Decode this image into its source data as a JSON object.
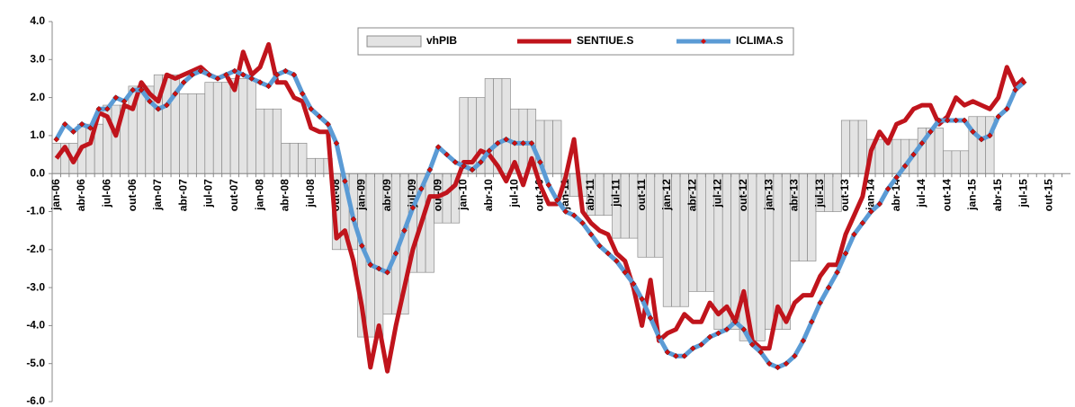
{
  "chart_data": {
    "type": "bar-line",
    "categories": [
      "jan-06",
      null,
      null,
      "abr-06",
      null,
      null,
      "jul-06",
      null,
      null,
      "out-06",
      null,
      null,
      "jan-07",
      null,
      null,
      "abr-07",
      null,
      null,
      "jul-07",
      null,
      null,
      "out-07",
      null,
      null,
      "jan-08",
      null,
      null,
      "abr-08",
      null,
      null,
      "jul-08",
      null,
      null,
      "out-08",
      null,
      null,
      "jan-09",
      null,
      null,
      "abr-09",
      null,
      null,
      "jul-09",
      null,
      null,
      "out-09",
      null,
      null,
      "jan-10",
      null,
      null,
      "abr-10",
      null,
      null,
      "jul-10",
      null,
      null,
      "out-10",
      null,
      null,
      "jan-11",
      null,
      null,
      "abr-11",
      null,
      null,
      "jul-11",
      null,
      null,
      "out-11",
      null,
      null,
      "jan-12",
      null,
      null,
      "abr-12",
      null,
      null,
      "jul-12",
      null,
      null,
      "out-12",
      null,
      null,
      "jan-13",
      null,
      null,
      "abr-13",
      null,
      null,
      "jul-13",
      null,
      null,
      "out-13",
      null,
      null,
      "jan-14",
      null,
      null,
      "abr-14",
      null,
      null,
      "jul-14",
      null,
      null,
      "out-14",
      null,
      null,
      "jan-15",
      null,
      null,
      "abr-15",
      null,
      null,
      "jul-15",
      null,
      null,
      "out-15",
      null,
      null
    ],
    "series": [
      {
        "name": "vhPIB",
        "kind": "bar",
        "color": "#e3e3e3",
        "values": [
          0.8,
          0.8,
          0.8,
          1.3,
          1.3,
          1.3,
          1.8,
          1.8,
          1.8,
          2.3,
          2.3,
          2.3,
          2.6,
          2.6,
          2.6,
          2.1,
          2.1,
          2.1,
          2.4,
          2.4,
          2.4,
          2.5,
          2.5,
          2.5,
          1.7,
          1.7,
          1.7,
          0.8,
          0.8,
          0.8,
          0.4,
          0.4,
          0.4,
          -2.0,
          -2.0,
          -2.0,
          -4.3,
          -4.3,
          -4.3,
          -3.7,
          -3.7,
          -3.7,
          -2.6,
          -2.6,
          -2.6,
          -1.3,
          -1.3,
          -1.3,
          2.0,
          2.0,
          2.0,
          2.5,
          2.5,
          2.5,
          1.7,
          1.7,
          1.7,
          1.4,
          1.4,
          1.4,
          -0.6,
          -0.6,
          -0.6,
          -1.1,
          -1.1,
          -1.1,
          -1.7,
          -1.7,
          -1.7,
          -2.2,
          -2.2,
          -2.2,
          -3.5,
          -3.5,
          -3.5,
          -3.1,
          -3.1,
          -3.1,
          -4.1,
          -4.1,
          -4.1,
          -4.4,
          -4.4,
          -4.4,
          -4.1,
          -4.1,
          -4.1,
          -2.3,
          -2.3,
          -2.3,
          -1.0,
          -1.0,
          -1.0,
          1.4,
          1.4,
          1.4,
          0.9,
          0.9,
          0.9,
          0.9,
          0.9,
          0.9,
          1.2,
          1.2,
          1.2,
          0.6,
          0.6,
          0.6,
          1.5,
          1.5,
          1.5,
          null,
          null,
          null,
          null,
          null,
          null,
          null,
          null,
          null
        ]
      },
      {
        "name": "SENTIUE.S",
        "kind": "line",
        "color": "#c0141c",
        "values": [
          0.4,
          0.7,
          0.3,
          0.7,
          0.8,
          1.6,
          1.5,
          1.0,
          1.8,
          1.7,
          2.4,
          2.1,
          1.9,
          2.6,
          2.5,
          2.6,
          2.7,
          2.8,
          2.6,
          2.5,
          2.6,
          2.2,
          3.2,
          2.6,
          2.8,
          3.4,
          2.4,
          2.4,
          2.0,
          1.9,
          1.2,
          1.1,
          1.1,
          -1.7,
          -1.5,
          -2.3,
          -3.5,
          -5.1,
          -4.0,
          -5.2,
          -4.0,
          -3.0,
          -2.0,
          -1.3,
          -0.6,
          -0.6,
          -0.5,
          -0.3,
          0.3,
          0.3,
          0.6,
          0.5,
          0.2,
          -0.2,
          0.3,
          -0.3,
          0.4,
          -0.3,
          -0.8,
          -0.8,
          -0.1,
          0.9,
          -1.0,
          -1.3,
          -1.5,
          -1.6,
          -2.1,
          -2.3,
          -3.0,
          -4.0,
          -2.8,
          -4.4,
          -4.2,
          -4.1,
          -3.7,
          -3.9,
          -3.9,
          -3.4,
          -3.7,
          -3.5,
          -3.9,
          -3.1,
          -4.4,
          -4.6,
          -4.6,
          -3.5,
          -3.9,
          -3.4,
          -3.2,
          -3.2,
          -2.7,
          -2.4,
          -2.4,
          -1.6,
          -1.1,
          -0.6,
          0.6,
          1.1,
          0.8,
          1.3,
          1.4,
          1.7,
          1.8,
          1.8,
          1.3,
          1.5,
          2.0,
          1.8,
          1.9,
          1.8,
          1.7,
          2.0,
          2.8,
          2.3,
          2.5,
          null,
          null,
          null,
          null,
          null
        ]
      },
      {
        "name": "ICLIMA.S",
        "kind": "line-marker",
        "color": "#5b9bd5",
        "marker_color": "#d01010",
        "values": [
          0.9,
          1.3,
          1.1,
          1.3,
          1.2,
          1.7,
          1.7,
          2.0,
          1.9,
          2.2,
          2.2,
          1.9,
          1.7,
          1.8,
          2.1,
          2.4,
          2.6,
          2.7,
          2.6,
          2.5,
          2.6,
          2.7,
          2.6,
          2.5,
          2.4,
          2.3,
          2.6,
          2.7,
          2.6,
          2.1,
          1.7,
          1.5,
          1.3,
          0.8,
          -0.2,
          -1.2,
          -1.9,
          -2.4,
          -2.5,
          -2.6,
          -2.1,
          -1.5,
          -0.9,
          -0.4,
          0.1,
          0.7,
          0.5,
          0.3,
          0.2,
          0.1,
          0.3,
          0.6,
          0.8,
          0.9,
          0.8,
          0.8,
          0.8,
          0.3,
          -0.3,
          -0.7,
          -1.0,
          -1.1,
          -1.3,
          -1.6,
          -1.9,
          -2.1,
          -2.3,
          -2.6,
          -2.9,
          -3.3,
          -3.8,
          -4.3,
          -4.7,
          -4.8,
          -4.8,
          -4.6,
          -4.5,
          -4.3,
          -4.2,
          -4.1,
          -3.9,
          -4.1,
          -4.5,
          -4.7,
          -5.0,
          -5.1,
          -5.0,
          -4.8,
          -4.4,
          -3.9,
          -3.4,
          -3.0,
          -2.6,
          -2.1,
          -1.6,
          -1.3,
          -1.0,
          -0.8,
          -0.4,
          -0.1,
          0.2,
          0.5,
          0.8,
          1.1,
          1.4,
          1.4,
          1.4,
          1.4,
          1.1,
          0.9,
          1.0,
          1.5,
          1.7,
          2.2,
          2.4,
          null,
          null,
          null,
          null,
          null
        ]
      }
    ],
    "ylim": [
      -6,
      4
    ],
    "yticks": [
      {
        "value": -6,
        "label": "-6.0"
      },
      {
        "value": -5,
        "label": "-5.0"
      },
      {
        "value": -4,
        "label": "-4.0"
      },
      {
        "value": -3,
        "label": "-3.0"
      },
      {
        "value": -2,
        "label": "-2.0"
      },
      {
        "value": -1,
        "label": "-1.0"
      },
      {
        "value": 0,
        "label": "0.0"
      },
      {
        "value": 1,
        "label": "1.0"
      },
      {
        "value": 2,
        "label": "2.0"
      },
      {
        "value": 3,
        "label": "3.0"
      },
      {
        "value": 4,
        "label": "4.0"
      }
    ],
    "grid": false,
    "legend": "top"
  }
}
